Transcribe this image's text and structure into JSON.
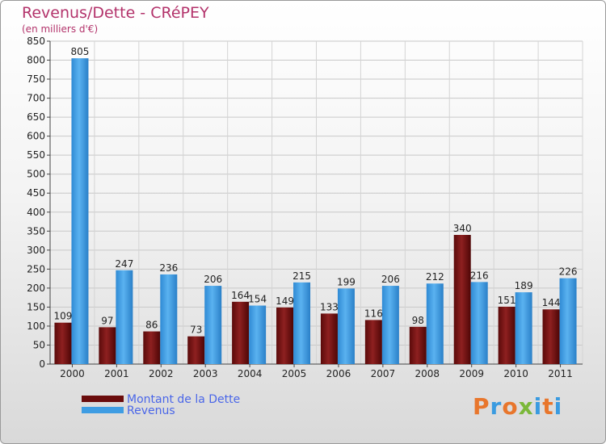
{
  "header": {
    "title": "Revenus/Dette - CRéPEY",
    "subtitle": "(en milliers d'€)"
  },
  "legend": {
    "items": [
      {
        "label": "Montant de la Dette",
        "color": "#7a1212"
      },
      {
        "label": "Revenus",
        "color": "#3f9de3"
      }
    ]
  },
  "logo": {
    "text": "Proxiti"
  },
  "chart_data": {
    "type": "bar",
    "title": "Revenus/Dette - CRéPEY",
    "subtitle": "(en milliers d'€)",
    "xlabel": "",
    "ylabel": "",
    "ylim": [
      0,
      850
    ],
    "yticks": [
      0,
      50,
      100,
      150,
      200,
      250,
      300,
      350,
      400,
      450,
      500,
      550,
      600,
      650,
      700,
      750,
      800,
      850
    ],
    "grid": true,
    "legend_position": "bottom-left",
    "categories": [
      "2000",
      "2001",
      "2002",
      "2003",
      "2004",
      "2005",
      "2006",
      "2007",
      "2008",
      "2009",
      "2010",
      "2011"
    ],
    "series": [
      {
        "name": "Montant de la Dette",
        "color": "#7a1212",
        "values": [
          109,
          97,
          86,
          73,
          164,
          149,
          133,
          116,
          98,
          340,
          151,
          144
        ]
      },
      {
        "name": "Revenus",
        "color": "#3f9de3",
        "values": [
          805,
          247,
          236,
          206,
          154,
          215,
          199,
          206,
          212,
          216,
          189,
          226
        ]
      }
    ]
  }
}
